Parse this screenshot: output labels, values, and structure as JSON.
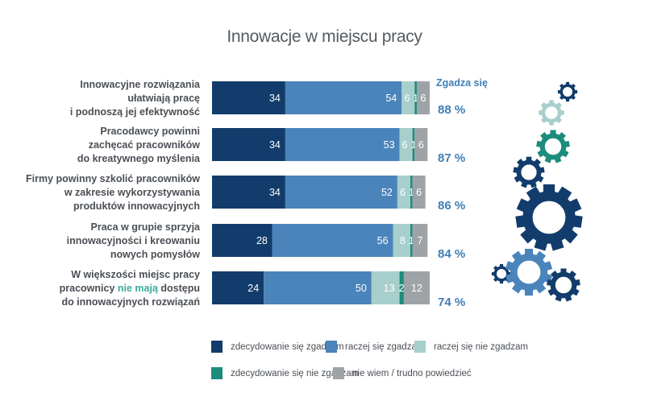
{
  "chart_data": {
    "type": "bar",
    "orientation": "horizontal",
    "stacked": true,
    "title": "Innowacje w miejscu pracy",
    "agree_header": "Zgadza się",
    "categories": [
      [
        "Innowacyjne rozwiązania",
        "ułatwiają pracę",
        "i podnoszą jej efektywność"
      ],
      [
        "Pracodawcy powinni",
        "zachęcać pracowników",
        "do kreatywnego myślenia"
      ],
      [
        "Firmy powinny szkolić pracowników",
        "w zakresie wykorzystywania",
        "produktów innowacyjnych"
      ],
      [
        "Praca w grupie sprzyja",
        "innowacyjności i kreowaniu",
        "nowych pomysłów"
      ],
      [
        "W większości miejsc pracy",
        "pracownicy |nie mają| dostępu",
        "do innowacyjnych rozwiązań"
      ]
    ],
    "series": [
      {
        "name": "zdecydowanie się zgadzam",
        "color": "#123c6b",
        "values": [
          34,
          34,
          34,
          28,
          24
        ]
      },
      {
        "name": "raczej się zgadzam",
        "color": "#4a84bb",
        "values": [
          54,
          53,
          52,
          56,
          50
        ]
      },
      {
        "name": "raczej się nie zgadzam",
        "color": "#a7cfcb",
        "values": [
          6,
          6,
          6,
          8,
          13
        ]
      },
      {
        "name": "zdecydowanie się nie zgadzam",
        "color": "#1c8c7c",
        "values": [
          1,
          1,
          1,
          1,
          2
        ]
      },
      {
        "name": "nie wiem / trudno powiedzieć",
        "color": "#9ea3a7",
        "values": [
          6,
          6,
          6,
          7,
          12
        ]
      }
    ],
    "agree_totals": [
      "88 %",
      "87 %",
      "86 %",
      "84 %",
      "74 %"
    ],
    "xlim": [
      0,
      101
    ]
  },
  "decoration": {
    "gear_icons": [
      "gear-icon"
    ]
  }
}
